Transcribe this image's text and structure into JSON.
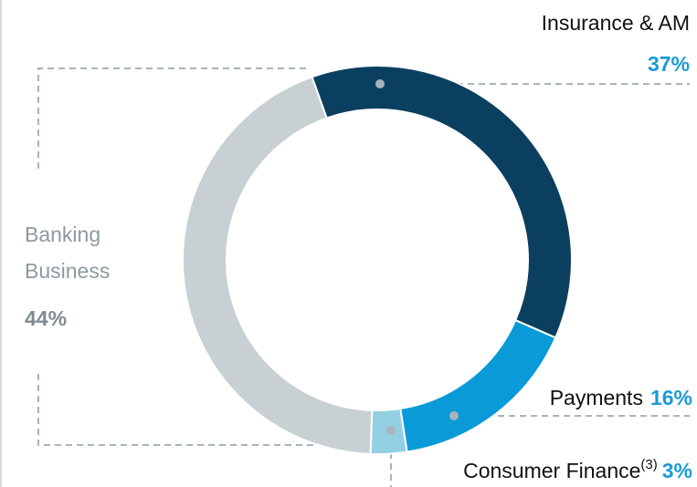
{
  "chart_data": {
    "type": "donut",
    "series": [
      {
        "name": "Insurance & AM",
        "values": [
          37
        ],
        "value_labels": [
          "37%"
        ],
        "color": "#0b3f5f"
      },
      {
        "name": "Payments",
        "values": [
          16
        ],
        "value_labels": [
          "16%"
        ],
        "color": "#0a9ad8"
      },
      {
        "name": "Consumer Finance",
        "footnote": "(3)",
        "values": [
          3
        ],
        "value_labels": [
          "3%"
        ],
        "color": "#93cfe2"
      },
      {
        "name": "Banking Business",
        "values": [
          44
        ],
        "value_labels": [
          "44%"
        ],
        "color": "#c8d0d4"
      }
    ]
  }
}
